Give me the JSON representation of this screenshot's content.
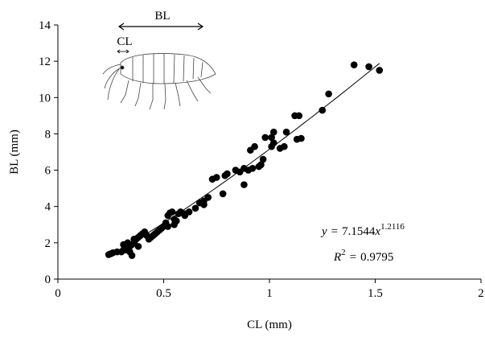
{
  "chart_data": {
    "type": "scatter",
    "x_label": "CL (mm)",
    "y_label": "BL (mm)",
    "xlim": [
      0,
      2
    ],
    "xticks": [
      0,
      0.5,
      1,
      1.5,
      2
    ],
    "ylim": [
      0,
      14
    ],
    "yticks": [
      0,
      2,
      4,
      6,
      8,
      10,
      12,
      14
    ],
    "color": "#000000",
    "x": [
      1.4,
      1.47,
      1.52,
      1.28,
      1.25,
      1.12,
      1.14,
      1.13,
      1.15,
      1.08,
      1.07,
      1.05,
      1.02,
      1.01,
      0.98,
      1.02,
      1.01,
      0.93,
      0.91,
      0.88,
      0.97,
      0.96,
      0.92,
      0.9,
      0.86,
      0.84,
      0.8,
      0.79,
      0.75,
      0.73,
      0.71,
      0.78,
      0.69,
      0.69,
      0.65,
      0.62,
      0.6,
      0.57,
      0.58,
      0.56,
      0.55,
      0.54,
      0.53,
      0.52,
      0.51,
      0.5,
      0.49,
      0.48,
      0.46,
      0.44,
      0.43,
      0.41,
      0.4,
      0.39,
      0.38,
      0.37,
      0.36,
      0.35,
      0.34,
      0.33,
      0.32,
      0.31,
      0.3,
      0.28,
      0.26,
      0.25,
      0.24,
      0.33,
      0.36,
      0.38,
      0.34,
      0.31,
      0.35,
      0.42,
      0.47,
      0.45,
      0.52,
      0.55,
      0.6,
      0.67,
      0.88,
      0.95
    ],
    "values": [
      11.8,
      11.7,
      11.5,
      10.2,
      9.3,
      9.0,
      9.0,
      7.7,
      7.75,
      8.1,
      7.3,
      7.2,
      8.1,
      7.8,
      7.8,
      7.5,
      7.3,
      7.3,
      7.1,
      5.2,
      6.6,
      6.3,
      6.1,
      6.0,
      5.9,
      6.0,
      5.8,
      5.7,
      5.6,
      5.5,
      4.5,
      4.7,
      4.3,
      4.1,
      3.9,
      3.7,
      3.5,
      3.6,
      3.7,
      3.2,
      3.0,
      3.7,
      3.65,
      3.5,
      3.1,
      2.9,
      2.8,
      2.7,
      2.5,
      2.3,
      2.2,
      2.6,
      2.5,
      2.4,
      2.3,
      2.2,
      2.0,
      1.9,
      1.8,
      1.7,
      1.6,
      1.6,
      1.5,
      1.5,
      1.45,
      1.4,
      1.35,
      2.0,
      2.2,
      1.8,
      1.5,
      1.9,
      1.3,
      2.4,
      2.6,
      2.4,
      2.9,
      3.3,
      3.6,
      4.2,
      6.1,
      6.2
    ],
    "fit": {
      "lhs": "y",
      "equals": "=",
      "a": 7.1544,
      "var": "x",
      "b": 1.2116,
      "r_label": "R",
      "r_sup": "2",
      "r2": 0.9795
    },
    "inset": {
      "body_label": "BL",
      "carapace_label": "CL"
    }
  }
}
